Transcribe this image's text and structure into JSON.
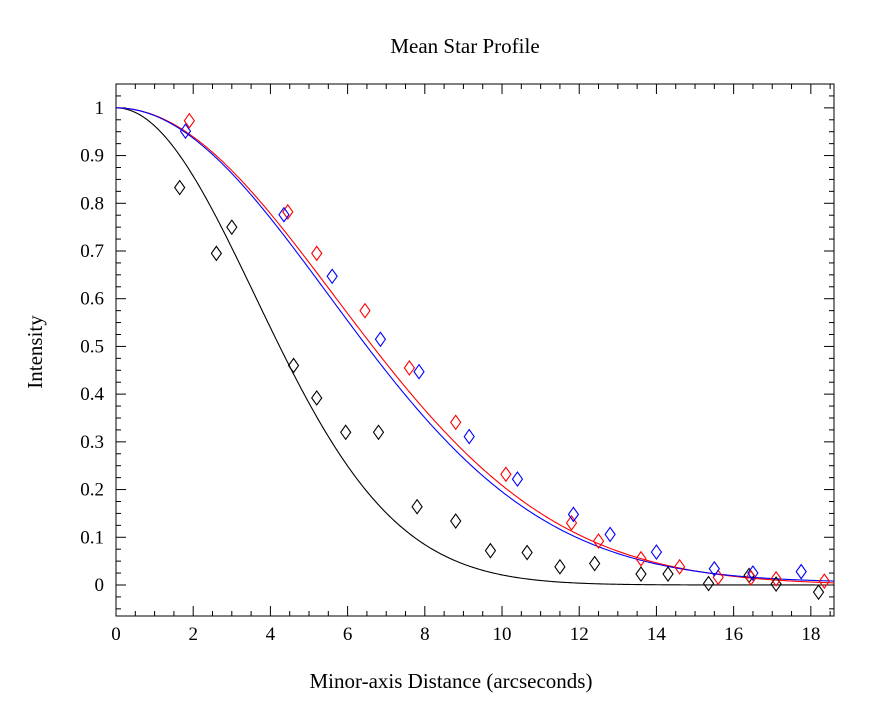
{
  "chart_data": {
    "type": "scatter",
    "title": "Mean Star Profile",
    "xlabel": "Minor-axis Distance (arcseconds)",
    "ylabel": "Intensity",
    "xlim": [
      0,
      18.6
    ],
    "ylim": [
      -0.065,
      1.05
    ],
    "x_ticks": [
      0,
      2,
      4,
      6,
      8,
      10,
      12,
      14,
      16,
      18
    ],
    "y_ticks": [
      0,
      0.1,
      0.2,
      0.3,
      0.4,
      0.5,
      0.6,
      0.7,
      0.8,
      0.9,
      1
    ],
    "grid": false,
    "legend": false,
    "series": [
      {
        "color": "#000000",
        "marker": "diamond",
        "points": [
          [
            1.65,
            0.833
          ],
          [
            2.6,
            0.695
          ],
          [
            3.0,
            0.75
          ],
          [
            4.6,
            0.46
          ],
          [
            5.2,
            0.392
          ],
          [
            5.95,
            0.32
          ],
          [
            6.8,
            0.32
          ],
          [
            7.8,
            0.164
          ],
          [
            8.8,
            0.134
          ],
          [
            9.7,
            0.072
          ],
          [
            10.65,
            0.068
          ],
          [
            11.5,
            0.038
          ],
          [
            12.4,
            0.045
          ],
          [
            13.6,
            0.023
          ],
          [
            14.3,
            0.023
          ],
          [
            15.35,
            0.003
          ],
          [
            16.4,
            0.02
          ],
          [
            17.1,
            0.002
          ],
          [
            18.2,
            -0.015
          ]
        ],
        "fit": {
          "kind": "gaussian",
          "sigma": 3.6
        }
      },
      {
        "color": "#ff0000",
        "marker": "diamond",
        "points": [
          [
            1.9,
            0.973
          ],
          [
            4.45,
            0.782
          ],
          [
            5.2,
            0.695
          ],
          [
            6.45,
            0.575
          ],
          [
            7.6,
            0.455
          ],
          [
            8.8,
            0.341
          ],
          [
            10.1,
            0.232
          ],
          [
            11.8,
            0.13
          ],
          [
            12.5,
            0.092
          ],
          [
            13.6,
            0.055
          ],
          [
            14.6,
            0.038
          ],
          [
            15.6,
            0.016
          ],
          [
            16.45,
            0.015
          ],
          [
            17.1,
            0.013
          ],
          [
            18.35,
            0.008
          ]
        ],
        "fit": {
          "kind": "gaussian",
          "sigma": 5.65
        }
      },
      {
        "color": "#0000ff",
        "marker": "diamond",
        "points": [
          [
            1.8,
            0.951
          ],
          [
            4.35,
            0.776
          ],
          [
            5.6,
            0.647
          ],
          [
            6.85,
            0.515
          ],
          [
            7.85,
            0.447
          ],
          [
            9.15,
            0.311
          ],
          [
            10.4,
            0.222
          ],
          [
            11.85,
            0.148
          ],
          [
            12.8,
            0.106
          ],
          [
            14.0,
            0.069
          ],
          [
            15.5,
            0.034
          ],
          [
            16.5,
            0.025
          ],
          [
            17.75,
            0.028
          ]
        ],
        "fit": {
          "kind": "gaussian",
          "sigma": 5.5,
          "baseline": 0.005
        }
      }
    ]
  }
}
